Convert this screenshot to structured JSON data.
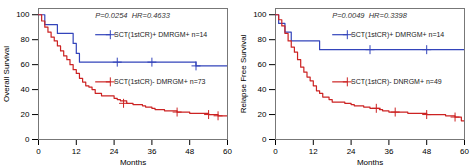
{
  "chart_data": [
    {
      "type": "line",
      "annotation": "P=0.0254  HR=0.4633",
      "xlabel": "Months",
      "ylabel": "Overall Survival",
      "xlim": [
        0,
        60
      ],
      "ylim": [
        0,
        105
      ],
      "xticks": [
        0,
        12,
        24,
        36,
        48,
        60
      ],
      "yticks": [
        0,
        20,
        40,
        60,
        80,
        100
      ],
      "grid": false,
      "legend": "inside",
      "series": [
        {
          "name": "SCT(1stCR)+ DMRGM+ n=14",
          "type": "line",
          "line_style": "step",
          "color": "#3344bb",
          "x": [
            0,
            2,
            4,
            6,
            10,
            11,
            12,
            13,
            18,
            25,
            30,
            36,
            50,
            59,
            60
          ],
          "values": [
            100,
            92,
            92,
            85,
            85,
            77,
            69,
            62,
            62,
            62,
            62,
            62,
            59,
            59,
            59
          ]
        },
        {
          "type": "scatter",
          "marker": "+",
          "color": "#3344bb",
          "x": [
            25,
            36,
            50
          ],
          "values": [
            62,
            62,
            59
          ]
        },
        {
          "name": "SCT(1stCR)- DMRGM+ n=73",
          "type": "line",
          "line_style": "step",
          "color": "#cc2222",
          "x": [
            0,
            1,
            2,
            3,
            4,
            5,
            6,
            7,
            8,
            9,
            10,
            11,
            12,
            13,
            14,
            15,
            16,
            17,
            18,
            20,
            24,
            25,
            26,
            28,
            30,
            33,
            34,
            36,
            37,
            40,
            42,
            44,
            48,
            50,
            54,
            57,
            59,
            60
          ],
          "values": [
            100,
            95,
            90,
            86,
            82,
            79,
            75,
            71,
            67,
            64,
            60,
            56,
            53,
            49,
            46,
            43,
            42,
            40,
            37,
            35,
            33,
            32,
            31,
            29,
            28,
            27,
            26,
            25,
            24,
            23,
            23,
            22,
            21,
            21,
            20,
            19,
            19,
            19
          ]
        },
        {
          "type": "scatter",
          "marker": "+",
          "color": "#cc2222",
          "x": [
            27,
            44,
            54,
            57
          ],
          "values": [
            29,
            22,
            20,
            19
          ]
        }
      ]
    },
    {
      "type": "line",
      "annotation": "P=0.0049  HR=0.3398",
      "xlabel": "Months",
      "ylabel": "Relapse Free Survival",
      "xlim": [
        0,
        60
      ],
      "ylim": [
        0,
        105
      ],
      "xticks": [
        0,
        12,
        24,
        36,
        48,
        60
      ],
      "yticks": [
        0,
        20,
        40,
        60,
        80,
        100
      ],
      "grid": false,
      "legend": "inside",
      "series": [
        {
          "name": "SCT(1stCR)+ DMRGM+ n=14",
          "type": "line",
          "line_style": "step",
          "color": "#3344bb",
          "x": [
            0,
            1,
            3,
            5,
            12,
            14,
            60
          ],
          "values": [
            100,
            93,
            86,
            79,
            79,
            72,
            72
          ]
        },
        {
          "type": "scatter",
          "marker": "+",
          "color": "#3344bb",
          "x": [
            30,
            48
          ],
          "values": [
            72,
            72
          ]
        },
        {
          "name": "SCT(1stCR)- DNRGM+ n=49",
          "type": "line",
          "line_style": "step",
          "color": "#cc2222",
          "x": [
            0,
            1,
            2,
            3,
            4,
            5,
            6,
            7,
            8,
            9,
            10,
            11,
            12,
            13,
            14,
            15,
            17,
            18,
            20,
            22,
            24,
            25,
            26,
            28,
            30,
            33,
            34,
            36,
            38,
            40,
            42,
            48,
            54,
            57,
            59,
            60
          ],
          "values": [
            100,
            96,
            91,
            85,
            79,
            74,
            70,
            64,
            58,
            54,
            50,
            47,
            43,
            39,
            37,
            34,
            32,
            30,
            30,
            29,
            28,
            27,
            27,
            26,
            25,
            24,
            23,
            22,
            22,
            22,
            21,
            20,
            19,
            18,
            15,
            15
          ]
        },
        {
          "type": "scatter",
          "marker": "+",
          "color": "#cc2222",
          "x": [
            32,
            38,
            48,
            57
          ],
          "values": [
            25,
            22,
            20,
            18
          ]
        }
      ]
    }
  ]
}
